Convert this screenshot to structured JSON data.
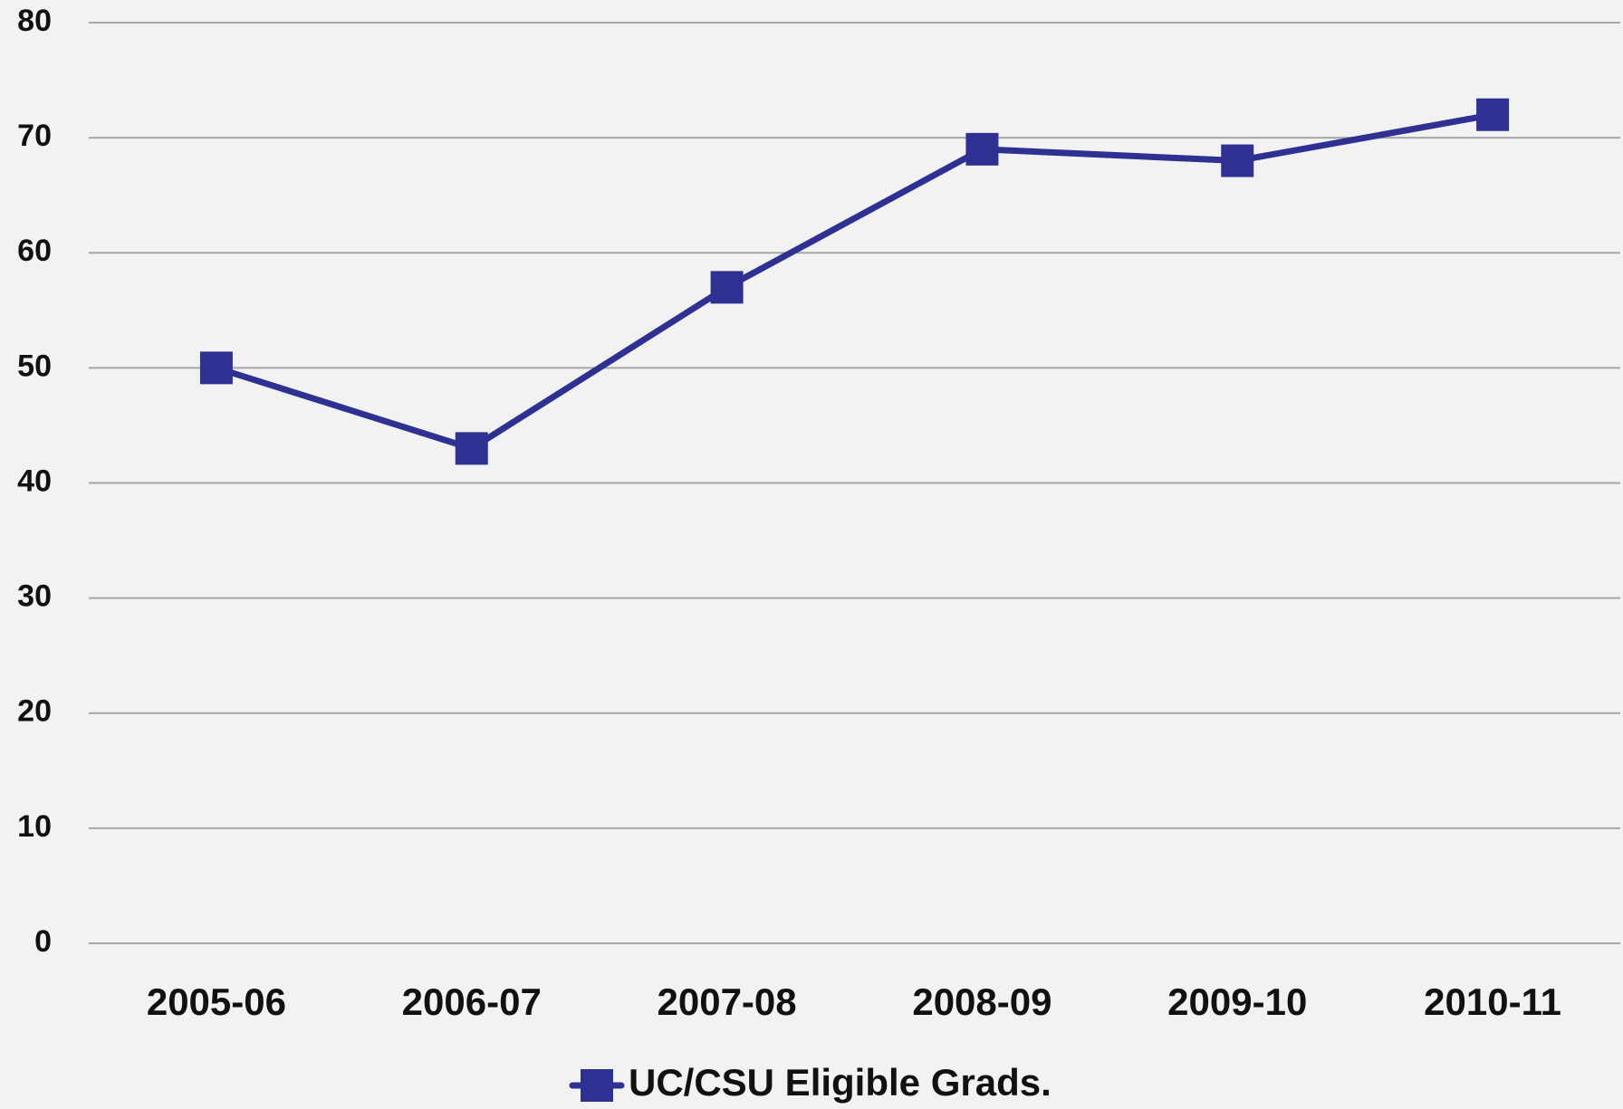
{
  "chart_data": {
    "type": "line",
    "categories": [
      "2005-06",
      "2006-07",
      "2007-08",
      "2008-09",
      "2009-10",
      "2010-11"
    ],
    "series": [
      {
        "name": "UC/CSU Eligible Grads.",
        "color": "#2e3192",
        "values": [
          50,
          43,
          57,
          69,
          68,
          72
        ]
      }
    ],
    "ylim": [
      0,
      80
    ],
    "yticks": [
      0,
      10,
      20,
      30,
      40,
      50,
      60,
      70,
      80
    ],
    "grid": true,
    "legend": "bottom"
  }
}
